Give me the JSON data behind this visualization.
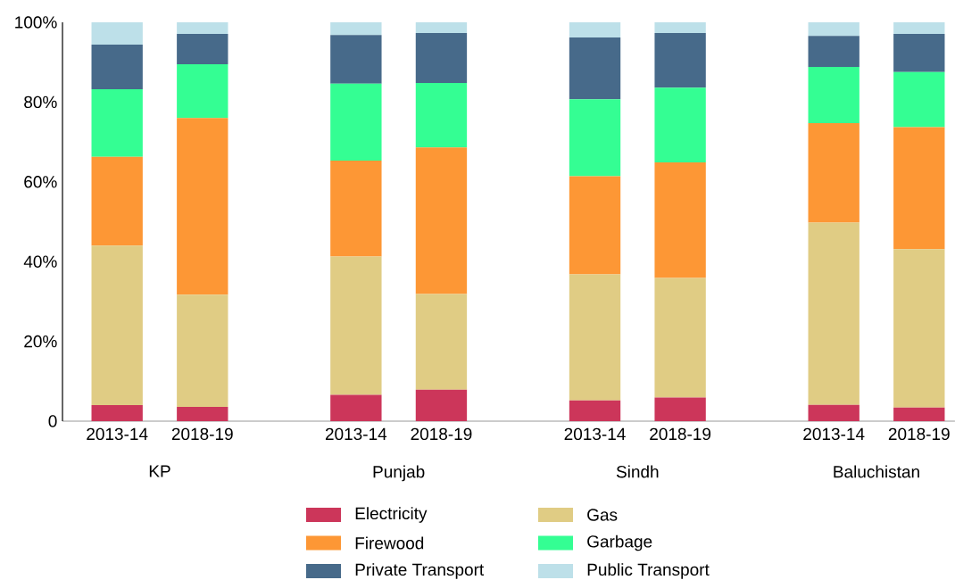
{
  "chart_data": {
    "type": "bar",
    "stacked": true,
    "categories": [
      "2013-14",
      "2018-19",
      "2013-14",
      "2018-19",
      "2013-14",
      "2018-19",
      "2013-14",
      "2018-19"
    ],
    "annotations": [
      "KP",
      "Punjab",
      "Sindh",
      "Baluchistan"
    ],
    "series": [
      {
        "name": "Electricity",
        "color": "#cc365a",
        "values": [
          4.0,
          3.6,
          6.6,
          7.9,
          5.2,
          5.9,
          4.1,
          3.4
        ]
      },
      {
        "name": "Gas",
        "color": "#e0cc84",
        "values": [
          40.0,
          28.1,
          34.7,
          24.0,
          31.6,
          30.0,
          45.7,
          39.7
        ]
      },
      {
        "name": "Firewood",
        "color": "#fd9735",
        "values": [
          22.3,
          44.3,
          24.0,
          36.7,
          24.6,
          29.0,
          24.9,
          30.6
        ]
      },
      {
        "name": "Garbage",
        "color": "#34fe93",
        "values": [
          16.9,
          13.5,
          19.3,
          16.2,
          19.3,
          18.7,
          14.1,
          13.8
        ]
      },
      {
        "name": "Private Transport",
        "color": "#476a8a",
        "values": [
          11.2,
          7.6,
          12.2,
          12.5,
          15.5,
          13.7,
          7.8,
          9.6
        ]
      },
      {
        "name": "Public Transport",
        "color": "#bde0e9",
        "values": [
          5.6,
          2.9,
          3.2,
          2.7,
          3.8,
          2.7,
          3.4,
          2.9
        ]
      }
    ],
    "ylim": [
      0,
      100
    ],
    "yticks": [
      0,
      {
        "value": 20,
        "label": "20%"
      },
      {
        "value": 40,
        "label": "40%"
      },
      {
        "value": 60,
        "label": "60%"
      },
      {
        "value": 80,
        "label": "80%"
      },
      {
        "value": 100,
        "label": "100%"
      }
    ],
    "legend": "bottom"
  }
}
